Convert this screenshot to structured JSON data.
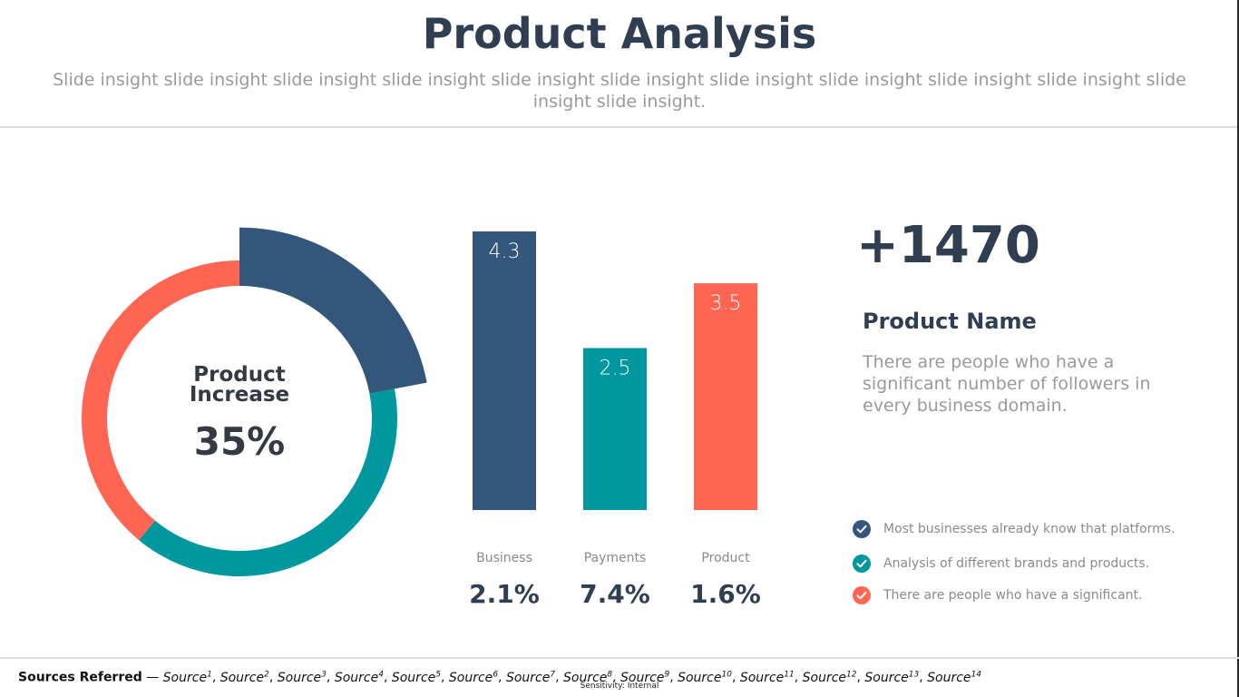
{
  "title": "Product Analysis",
  "subtitle": "Slide insight slide insight slide insight slide insight slide insight slide insight slide insight slide insight slide insight slide insight slide insight slide insight.",
  "donut": {
    "label": "Product Increase",
    "value_text": "35%"
  },
  "chart_data": [
    {
      "type": "pie",
      "title": "",
      "slices": [
        {
          "value": 0.22,
          "color": "#34567a"
        },
        {
          "value": 0.39,
          "color": "#00979f"
        },
        {
          "value": 0.39,
          "color": "#ff6553"
        }
      ],
      "center_text": [
        "Product Increase",
        "35%"
      ]
    },
    {
      "type": "bar",
      "categories": [
        "Business",
        "Payments",
        "Product"
      ],
      "values": [
        4.3,
        2.5,
        3.5
      ],
      "colors": [
        "#34567a",
        "#00979f",
        "#ff6553"
      ],
      "percent_labels": [
        "2.1%",
        "7.4%",
        "1.6%"
      ],
      "ylim": [
        0,
        4.3
      ]
    }
  ],
  "stat": {
    "big_number": "+1470",
    "name": "Product Name",
    "description": "There are people who have a significant number of followers in every business domain."
  },
  "checklist": [
    {
      "text": "Most businesses already know that platforms.",
      "color": "#34567a",
      "icon": "check-circle-icon"
    },
    {
      "text": "Analysis of different brands and products.",
      "color": "#00979f",
      "icon": "check-circle-icon"
    },
    {
      "text": "There are people who have a significant.",
      "color": "#ff6553",
      "icon": "check-circle-icon"
    }
  ],
  "footer": {
    "sources_label": "Sources Referred",
    "dash": " — ",
    "sources": [
      "Source",
      "Source",
      "Source",
      "Source",
      "Source",
      "Source",
      "Source",
      "Source",
      "Source",
      "Source",
      "Source",
      "Source",
      "Source",
      "Source"
    ],
    "sensitivity": "Sensitivity: Internal"
  }
}
